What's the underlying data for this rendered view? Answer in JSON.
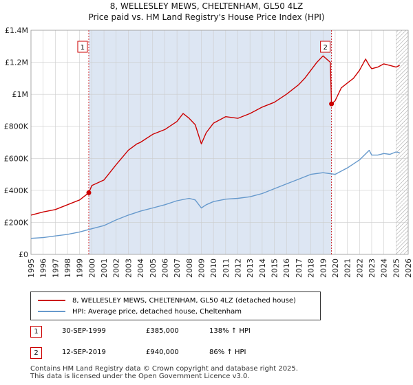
{
  "title_line1": "8, WELLESLEY MEWS, CHELTENHAM, GL50 4LZ",
  "title_line2": "Price paid vs. HM Land Registry's House Price Index (HPI)",
  "legend": {
    "property": "8, WELLESLEY MEWS, CHELTENHAM, GL50 4LZ (detached house)",
    "hpi": "HPI: Average price, detached house, Cheltenham"
  },
  "annotations": [
    {
      "num": "1",
      "date": "30-SEP-1999",
      "price": "£385,000",
      "hpi": "138% ↑ HPI"
    },
    {
      "num": "2",
      "date": "12-SEP-2019",
      "price": "£940,000",
      "hpi": "86% ↑ HPI"
    }
  ],
  "footer_line1": "Contains HM Land Registry data © Crown copyright and database right 2025.",
  "footer_line2": "This data is licensed under the Open Government Licence v3.0.",
  "colors": {
    "property": "#cc0000",
    "hpi": "#6699cc",
    "shade": "#dde6f3",
    "grid": "#cccccc",
    "marker_line": "#cc0000"
  },
  "chart_data": {
    "type": "line",
    "title": "Price paid vs. HM Land Registry's House Price Index (HPI)",
    "xlim": [
      1995,
      2026
    ],
    "ylim": [
      0,
      1400000
    ],
    "x_ticks": [
      "1995",
      "1996",
      "1997",
      "1998",
      "1999",
      "2000",
      "2001",
      "2002",
      "2003",
      "2004",
      "2005",
      "2006",
      "2007",
      "2008",
      "2009",
      "2010",
      "2011",
      "2012",
      "2013",
      "2014",
      "2015",
      "2016",
      "2017",
      "2018",
      "2019",
      "2020",
      "2021",
      "2022",
      "2023",
      "2024",
      "2025",
      "2026"
    ],
    "y_ticks": [
      {
        "value": 0,
        "label": "£0"
      },
      {
        "value": 200000,
        "label": "£200K"
      },
      {
        "value": 400000,
        "label": "£400K"
      },
      {
        "value": 600000,
        "label": "£600K"
      },
      {
        "value": 800000,
        "label": "£800K"
      },
      {
        "value": 1000000,
        "label": "£1M"
      },
      {
        "value": 1200000,
        "label": "£1.2M"
      },
      {
        "value": 1400000,
        "label": "£1.4M"
      }
    ],
    "shaded_range": [
      1999.75,
      2019.7
    ],
    "hatched_from": 2025.0,
    "series": [
      {
        "name": "8, WELLESLEY MEWS, CHELTENHAM, GL50 4LZ (detached house)",
        "x": [
          1995,
          1996,
          1997,
          1998,
          1999,
          1999.75,
          2000,
          2001,
          2002,
          2003,
          2003.7,
          2004,
          2005,
          2006,
          2007,
          2007.5,
          2008,
          2008.5,
          2009,
          2009.4,
          2010,
          2011,
          2012,
          2013,
          2014,
          2015,
          2016,
          2017,
          2017.5,
          2018,
          2018.5,
          2019,
          2019.6,
          2019.7,
          2020,
          2020.5,
          2021,
          2021.5,
          2022,
          2022.5,
          2022.8,
          2023,
          2023.5,
          2024,
          2024.5,
          2025,
          2025.3
        ],
        "values": [
          245000,
          265000,
          280000,
          310000,
          340000,
          385000,
          430000,
          465000,
          560000,
          650000,
          690000,
          700000,
          750000,
          780000,
          830000,
          880000,
          850000,
          810000,
          690000,
          760000,
          820000,
          860000,
          850000,
          880000,
          920000,
          950000,
          1000000,
          1060000,
          1100000,
          1150000,
          1200000,
          1240000,
          1200000,
          940000,
          960000,
          1040000,
          1070000,
          1100000,
          1150000,
          1220000,
          1180000,
          1160000,
          1170000,
          1190000,
          1180000,
          1170000,
          1180000
        ]
      },
      {
        "name": "HPI: Average price, detached house, Cheltenham",
        "x": [
          1995,
          1996,
          1997,
          1998,
          1999,
          2000,
          2001,
          2002,
          2003,
          2004,
          2005,
          2006,
          2007,
          2008,
          2008.5,
          2009,
          2009.4,
          2010,
          2011,
          2012,
          2013,
          2014,
          2015,
          2016,
          2017,
          2018,
          2019,
          2020,
          2020.5,
          2021,
          2022,
          2022.8,
          2023,
          2023.5,
          2024,
          2024.5,
          2025,
          2025.3
        ],
        "values": [
          100000,
          105000,
          115000,
          125000,
          140000,
          160000,
          180000,
          215000,
          245000,
          270000,
          290000,
          310000,
          335000,
          350000,
          340000,
          290000,
          310000,
          330000,
          345000,
          350000,
          360000,
          380000,
          410000,
          440000,
          470000,
          500000,
          510000,
          500000,
          520000,
          540000,
          590000,
          650000,
          620000,
          620000,
          630000,
          625000,
          640000,
          635000
        ]
      }
    ],
    "sale_points": [
      {
        "label": "1",
        "x": 1999.75,
        "y": 385000
      },
      {
        "label": "2",
        "x": 2019.7,
        "y": 940000
      }
    ]
  }
}
